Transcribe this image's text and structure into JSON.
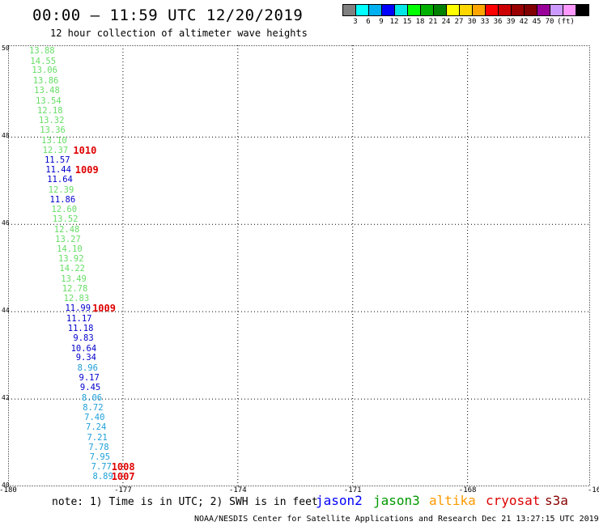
{
  "header": {
    "title": "00:00 – 11:59 UTC 12/20/2019",
    "subtitle": "12 hour collection of altimeter wave heights"
  },
  "colorbar": {
    "colors": [
      "#808080",
      "#00ffff",
      "#00b0f0",
      "#0000ff",
      "#00e5e5",
      "#00ff00",
      "#00b000",
      "#008000",
      "#ffff00",
      "#ffd700",
      "#ffa500",
      "#ff0000",
      "#cc0000",
      "#990000",
      "#800000",
      "#990099",
      "#cc99ff",
      "#ff99ff",
      "#000000"
    ],
    "labels": [
      "3",
      "6",
      "9",
      "12",
      "15",
      "18",
      "21",
      "24",
      "27",
      "30",
      "33",
      "36",
      "39",
      "42",
      "45",
      "70",
      "(ft)"
    ]
  },
  "map": {
    "lat_labels": [
      "50",
      "48",
      "46",
      "44",
      "42",
      "40"
    ],
    "lon_labels": [
      "-180",
      "-177",
      "-174",
      "-171",
      "-168",
      "-16"
    ],
    "observations": [
      {
        "text": "13.88",
        "color": "#66dd66",
        "lat": 49.95,
        "lon": -179.45
      },
      {
        "text": "14.55",
        "color": "#66dd66",
        "lat": 49.72,
        "lon": -179.42
      },
      {
        "text": "13.06",
        "color": "#66dd66",
        "lat": 49.5,
        "lon": -179.38
      },
      {
        "text": "13.86",
        "color": "#66dd66",
        "lat": 49.26,
        "lon": -179.35
      },
      {
        "text": "13.48",
        "color": "#66dd66",
        "lat": 49.04,
        "lon": -179.32
      },
      {
        "text": "13.54",
        "color": "#66dd66",
        "lat": 48.81,
        "lon": -179.28
      },
      {
        "text": "12.18",
        "color": "#66dd66",
        "lat": 48.58,
        "lon": -179.24
      },
      {
        "text": "13.32",
        "color": "#66dd66",
        "lat": 48.36,
        "lon": -179.2
      },
      {
        "text": "13.36",
        "color": "#66dd66",
        "lat": 48.13,
        "lon": -179.17
      },
      {
        "text": "13.10",
        "color": "#66dd66",
        "lat": 47.9,
        "lon": -179.13
      },
      {
        "text": "12.37",
        "color": "#66dd66",
        "lat": 47.68,
        "lon": -179.1
      },
      {
        "text": "11.57",
        "color": "#0000cc",
        "lat": 47.45,
        "lon": -179.05
      },
      {
        "text": "11.44",
        "color": "#0000cc",
        "lat": 47.22,
        "lon": -179.02
      },
      {
        "text": "11.64",
        "color": "#0000cc",
        "lat": 47.0,
        "lon": -178.98
      },
      {
        "text": "12.39",
        "color": "#66dd66",
        "lat": 46.77,
        "lon": -178.95
      },
      {
        "text": "11.86",
        "color": "#0000cc",
        "lat": 46.54,
        "lon": -178.91
      },
      {
        "text": "12.60",
        "color": "#66dd66",
        "lat": 46.32,
        "lon": -178.87
      },
      {
        "text": "13.52",
        "color": "#66dd66",
        "lat": 46.09,
        "lon": -178.84
      },
      {
        "text": "12.48",
        "color": "#66dd66",
        "lat": 45.86,
        "lon": -178.8
      },
      {
        "text": "13.27",
        "color": "#66dd66",
        "lat": 45.64,
        "lon": -178.77
      },
      {
        "text": "14.10",
        "color": "#66dd66",
        "lat": 45.41,
        "lon": -178.73
      },
      {
        "text": "13.92",
        "color": "#66dd66",
        "lat": 45.18,
        "lon": -178.69
      },
      {
        "text": "14.22",
        "color": "#66dd66",
        "lat": 44.96,
        "lon": -178.66
      },
      {
        "text": "13.49",
        "color": "#66dd66",
        "lat": 44.73,
        "lon": -178.62
      },
      {
        "text": "12.78",
        "color": "#66dd66",
        "lat": 44.5,
        "lon": -178.59
      },
      {
        "text": "12.83",
        "color": "#66dd66",
        "lat": 44.28,
        "lon": -178.55
      },
      {
        "text": "11.99",
        "color": "#0000cc",
        "lat": 44.05,
        "lon": -178.51
      },
      {
        "text": "11.17",
        "color": "#0000cc",
        "lat": 43.82,
        "lon": -178.48
      },
      {
        "text": "11.18",
        "color": "#0000cc",
        "lat": 43.6,
        "lon": -178.44
      },
      {
        "text": "9.83",
        "color": "#0000cc",
        "lat": 43.37,
        "lon": -178.3
      },
      {
        "text": "10.64",
        "color": "#0000cc",
        "lat": 43.14,
        "lon": -178.36
      },
      {
        "text": "9.34",
        "color": "#0000cc",
        "lat": 42.92,
        "lon": -178.23
      },
      {
        "text": "8.96",
        "color": "#1e9fd8",
        "lat": 42.69,
        "lon": -178.19
      },
      {
        "text": "9.17",
        "color": "#0000cc",
        "lat": 42.46,
        "lon": -178.15
      },
      {
        "text": "9.45",
        "color": "#0000cc",
        "lat": 42.24,
        "lon": -178.12
      },
      {
        "text": "8.06",
        "color": "#1e9fd8",
        "lat": 42.01,
        "lon": -178.08
      },
      {
        "text": "8.72",
        "color": "#1e9fd8",
        "lat": 41.78,
        "lon": -178.05
      },
      {
        "text": "7.40",
        "color": "#1e9fd8",
        "lat": 41.56,
        "lon": -178.01
      },
      {
        "text": "7.24",
        "color": "#1e9fd8",
        "lat": 41.33,
        "lon": -177.97
      },
      {
        "text": "7.21",
        "color": "#1e9fd8",
        "lat": 41.1,
        "lon": -177.94
      },
      {
        "text": "7.78",
        "color": "#1e9fd8",
        "lat": 40.88,
        "lon": -177.9
      },
      {
        "text": "7.95",
        "color": "#1e9fd8",
        "lat": 40.65,
        "lon": -177.87
      },
      {
        "text": "7.77",
        "color": "#1e9fd8",
        "lat": 40.42,
        "lon": -177.83
      },
      {
        "text": "8.89",
        "color": "#1e9fd8",
        "lat": 40.2,
        "lon": -177.79
      }
    ],
    "pressures": [
      {
        "text": "1010",
        "lat": 47.68,
        "lon": -178.3
      },
      {
        "text": "1009",
        "lat": 47.22,
        "lon": -178.25
      },
      {
        "text": "1009",
        "lat": 44.05,
        "lon": -177.8
      },
      {
        "text": "1008",
        "lat": 40.42,
        "lon": -177.3
      },
      {
        "text": "1007",
        "lat": 40.2,
        "lon": -177.3
      }
    ]
  },
  "note": "note:  1) Time is in UTC;  2) SWH is in feet",
  "legend": [
    {
      "text": "jason2",
      "color": "#0000ff"
    },
    {
      "text": "jason3",
      "color": "#009900"
    },
    {
      "text": "altika",
      "color": "#ff9900"
    },
    {
      "text": "cryosat",
      "color": "#dd0000"
    },
    {
      "text": "s3a",
      "color": "#880000"
    }
  ],
  "footer": "NOAA/NESDIS Center for Satellite Applications and Research     Dec 21 13:27:15 UTC 2019"
}
